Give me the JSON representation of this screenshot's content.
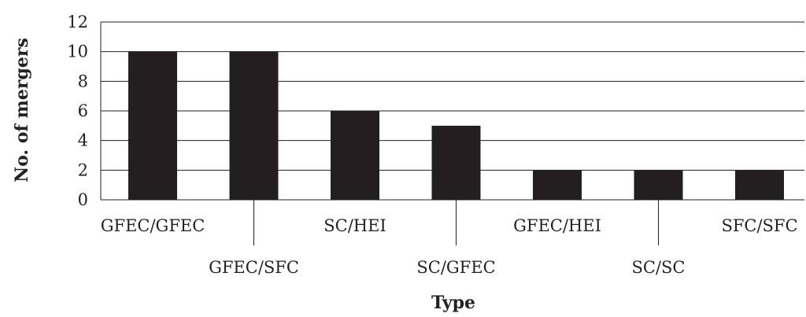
{
  "chart_data": {
    "type": "bar",
    "categories": [
      "GFEC/GFEC",
      "GFEC/SFC",
      "SC/HEI",
      "SC/GFEC",
      "GFEC/HEI",
      "SC/SC",
      "SFC/SFC"
    ],
    "values": [
      10,
      10,
      6,
      5,
      2,
      2,
      2
    ],
    "xlabel": "Type",
    "ylabel": "No. of mergers",
    "ylim": [
      0,
      12
    ],
    "yticks": [
      0,
      2,
      4,
      6,
      8,
      10,
      12
    ],
    "grid": true,
    "legend": "none",
    "colors": {
      "bar": "#231f20",
      "grid": "#231f20",
      "text": "#222222"
    }
  }
}
